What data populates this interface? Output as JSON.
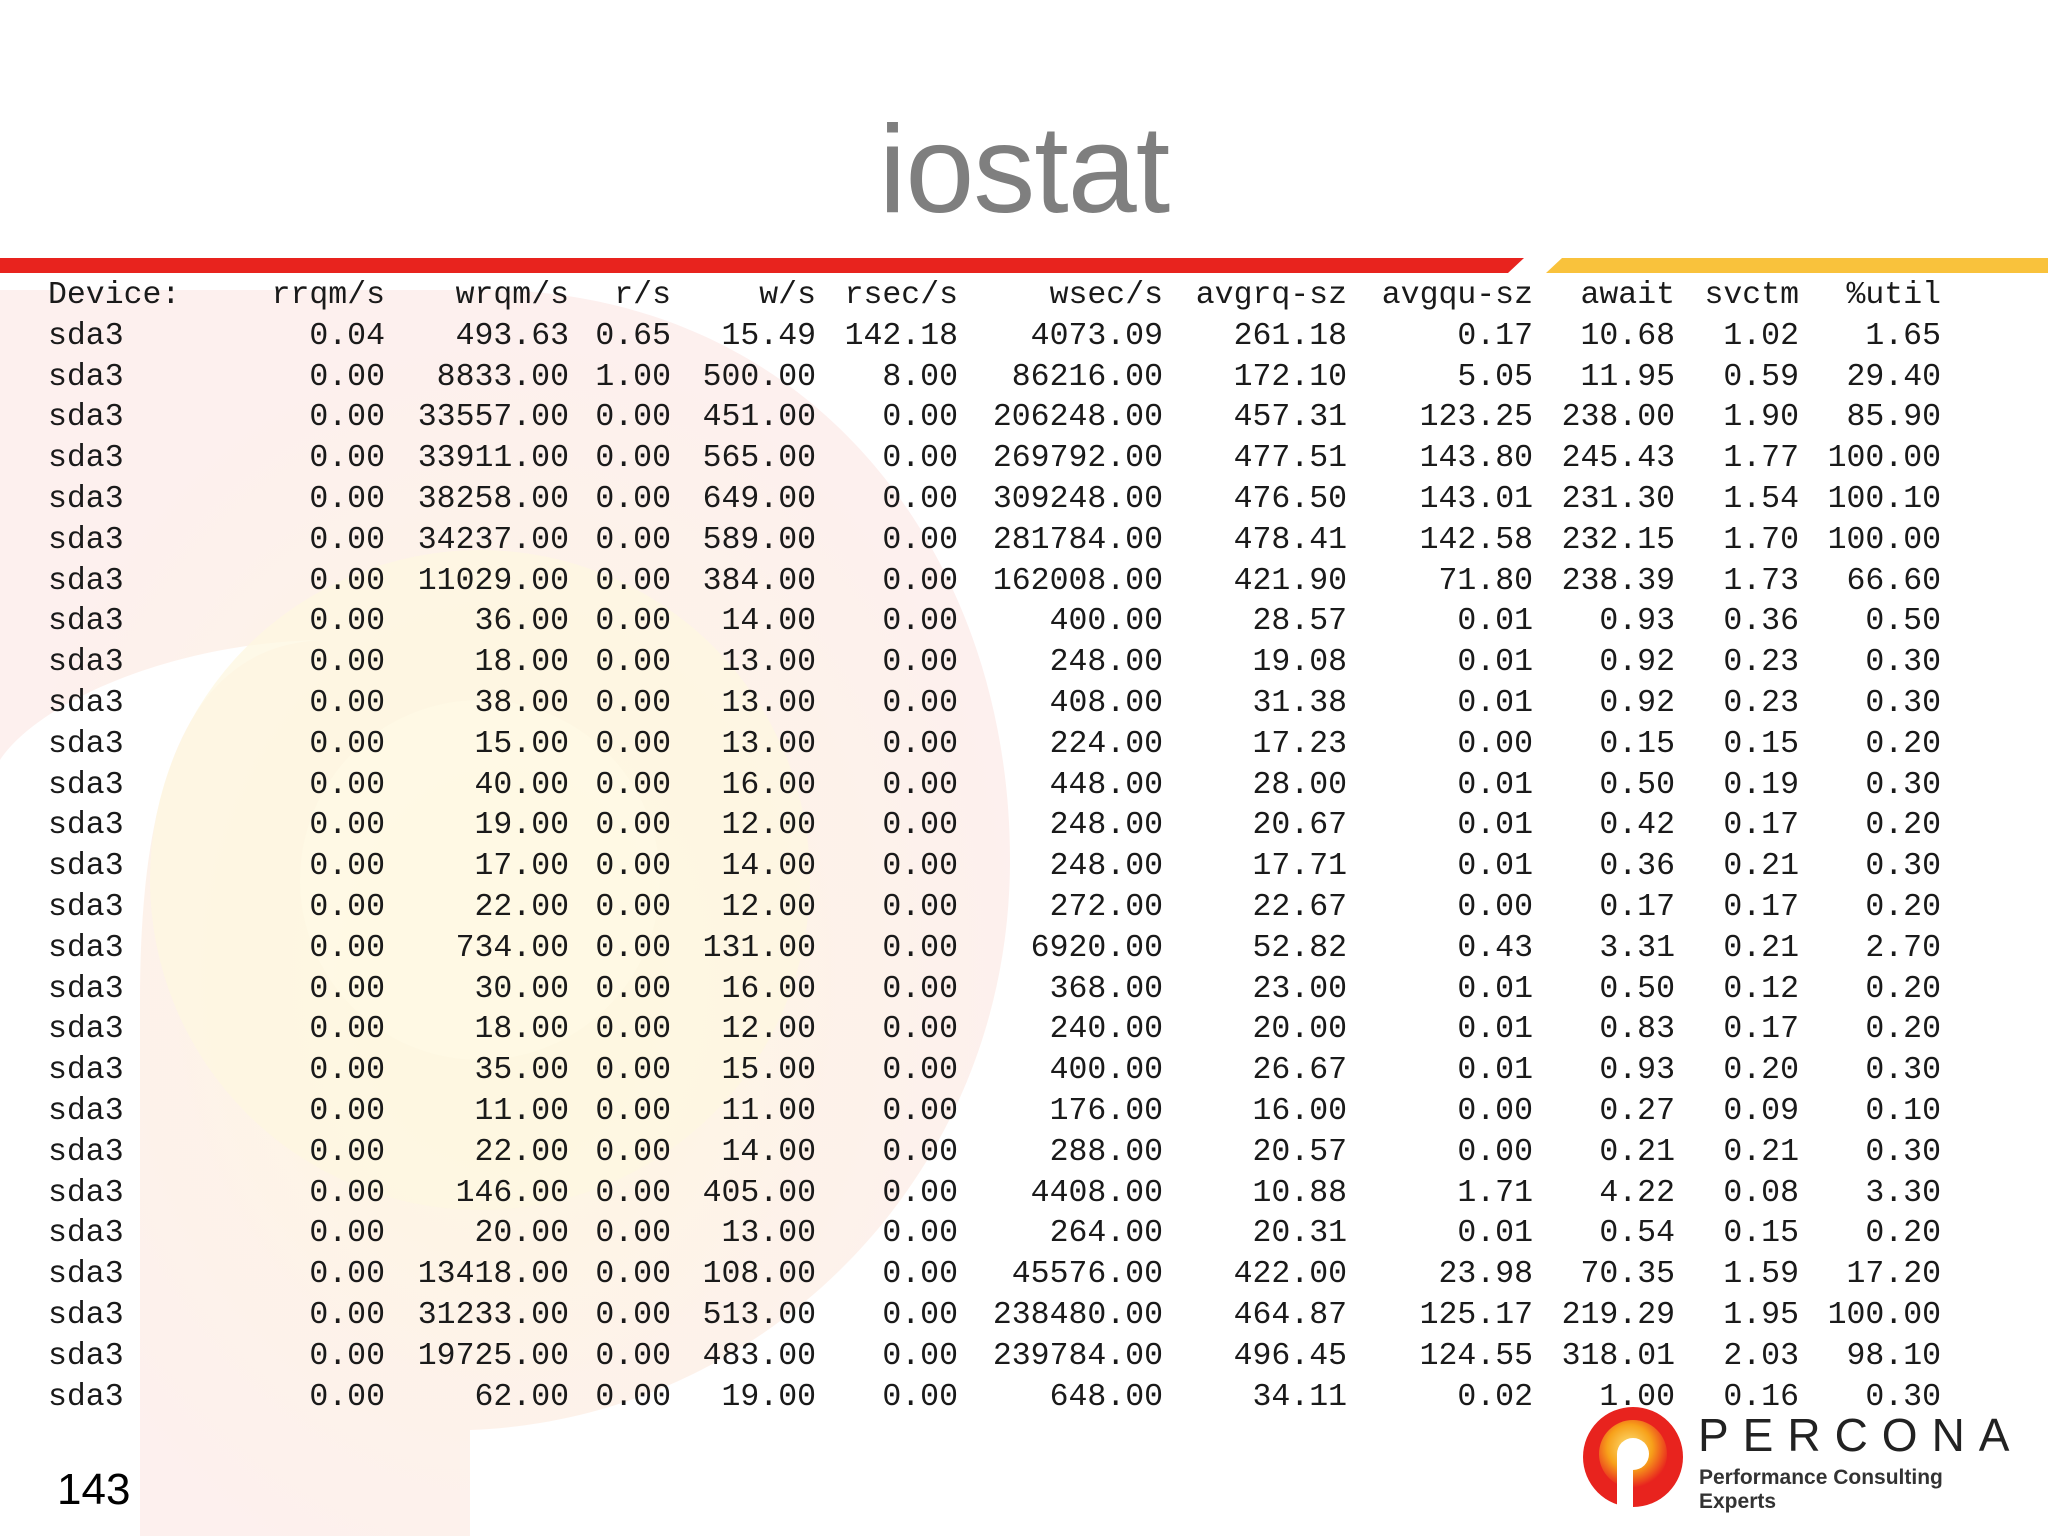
{
  "slide": {
    "title": "iostat",
    "page_number": "143"
  },
  "brand": {
    "name": "PERCONA",
    "tagline": "Performance Consulting Experts",
    "colors": {
      "red": "#e8231e",
      "orange": "#f7a11a",
      "yellow": "#fbd85c"
    }
  },
  "table": {
    "headers": [
      "Device:",
      "rrqm/s",
      "wrqm/s",
      "r/s",
      "w/s",
      "rsec/s",
      "wsec/s",
      "avgrq-sz",
      "avgqu-sz",
      "await",
      "svctm",
      "%util"
    ],
    "rows": [
      [
        "sda3",
        "0.04",
        "493.63",
        "0.65",
        "15.49",
        "142.18",
        "4073.09",
        "261.18",
        "0.17",
        "10.68",
        "1.02",
        "1.65"
      ],
      [
        "sda3",
        "0.00",
        "8833.00",
        "1.00",
        "500.00",
        "8.00",
        "86216.00",
        "172.10",
        "5.05",
        "11.95",
        "0.59",
        "29.40"
      ],
      [
        "sda3",
        "0.00",
        "33557.00",
        "0.00",
        "451.00",
        "0.00",
        "206248.00",
        "457.31",
        "123.25",
        "238.00",
        "1.90",
        "85.90"
      ],
      [
        "sda3",
        "0.00",
        "33911.00",
        "0.00",
        "565.00",
        "0.00",
        "269792.00",
        "477.51",
        "143.80",
        "245.43",
        "1.77",
        "100.00"
      ],
      [
        "sda3",
        "0.00",
        "38258.00",
        "0.00",
        "649.00",
        "0.00",
        "309248.00",
        "476.50",
        "143.01",
        "231.30",
        "1.54",
        "100.10"
      ],
      [
        "sda3",
        "0.00",
        "34237.00",
        "0.00",
        "589.00",
        "0.00",
        "281784.00",
        "478.41",
        "142.58",
        "232.15",
        "1.70",
        "100.00"
      ],
      [
        "sda3",
        "0.00",
        "11029.00",
        "0.00",
        "384.00",
        "0.00",
        "162008.00",
        "421.90",
        "71.80",
        "238.39",
        "1.73",
        "66.60"
      ],
      [
        "sda3",
        "0.00",
        "36.00",
        "0.00",
        "14.00",
        "0.00",
        "400.00",
        "28.57",
        "0.01",
        "0.93",
        "0.36",
        "0.50"
      ],
      [
        "sda3",
        "0.00",
        "18.00",
        "0.00",
        "13.00",
        "0.00",
        "248.00",
        "19.08",
        "0.01",
        "0.92",
        "0.23",
        "0.30"
      ],
      [
        "sda3",
        "0.00",
        "38.00",
        "0.00",
        "13.00",
        "0.00",
        "408.00",
        "31.38",
        "0.01",
        "0.92",
        "0.23",
        "0.30"
      ],
      [
        "sda3",
        "0.00",
        "15.00",
        "0.00",
        "13.00",
        "0.00",
        "224.00",
        "17.23",
        "0.00",
        "0.15",
        "0.15",
        "0.20"
      ],
      [
        "sda3",
        "0.00",
        "40.00",
        "0.00",
        "16.00",
        "0.00",
        "448.00",
        "28.00",
        "0.01",
        "0.50",
        "0.19",
        "0.30"
      ],
      [
        "sda3",
        "0.00",
        "19.00",
        "0.00",
        "12.00",
        "0.00",
        "248.00",
        "20.67",
        "0.01",
        "0.42",
        "0.17",
        "0.20"
      ],
      [
        "sda3",
        "0.00",
        "17.00",
        "0.00",
        "14.00",
        "0.00",
        "248.00",
        "17.71",
        "0.01",
        "0.36",
        "0.21",
        "0.30"
      ],
      [
        "sda3",
        "0.00",
        "22.00",
        "0.00",
        "12.00",
        "0.00",
        "272.00",
        "22.67",
        "0.00",
        "0.17",
        "0.17",
        "0.20"
      ],
      [
        "sda3",
        "0.00",
        "734.00",
        "0.00",
        "131.00",
        "0.00",
        "6920.00",
        "52.82",
        "0.43",
        "3.31",
        "0.21",
        "2.70"
      ],
      [
        "sda3",
        "0.00",
        "30.00",
        "0.00",
        "16.00",
        "0.00",
        "368.00",
        "23.00",
        "0.01",
        "0.50",
        "0.12",
        "0.20"
      ],
      [
        "sda3",
        "0.00",
        "18.00",
        "0.00",
        "12.00",
        "0.00",
        "240.00",
        "20.00",
        "0.01",
        "0.83",
        "0.17",
        "0.20"
      ],
      [
        "sda3",
        "0.00",
        "35.00",
        "0.00",
        "15.00",
        "0.00",
        "400.00",
        "26.67",
        "0.01",
        "0.93",
        "0.20",
        "0.30"
      ],
      [
        "sda3",
        "0.00",
        "11.00",
        "0.00",
        "11.00",
        "0.00",
        "176.00",
        "16.00",
        "0.00",
        "0.27",
        "0.09",
        "0.10"
      ],
      [
        "sda3",
        "0.00",
        "22.00",
        "0.00",
        "14.00",
        "0.00",
        "288.00",
        "20.57",
        "0.00",
        "0.21",
        "0.21",
        "0.30"
      ],
      [
        "sda3",
        "0.00",
        "146.00",
        "0.00",
        "405.00",
        "0.00",
        "4408.00",
        "10.88",
        "1.71",
        "4.22",
        "0.08",
        "3.30"
      ],
      [
        "sda3",
        "0.00",
        "20.00",
        "0.00",
        "13.00",
        "0.00",
        "264.00",
        "20.31",
        "0.01",
        "0.54",
        "0.15",
        "0.20"
      ],
      [
        "sda3",
        "0.00",
        "13418.00",
        "0.00",
        "108.00",
        "0.00",
        "45576.00",
        "422.00",
        "23.98",
        "70.35",
        "1.59",
        "17.20"
      ],
      [
        "sda3",
        "0.00",
        "31233.00",
        "0.00",
        "513.00",
        "0.00",
        "238480.00",
        "464.87",
        "125.17",
        "219.29",
        "1.95",
        "100.00"
      ],
      [
        "sda3",
        "0.00",
        "19725.00",
        "0.00",
        "483.00",
        "0.00",
        "239784.00",
        "496.45",
        "124.55",
        "318.01",
        "2.03",
        "98.10"
      ],
      [
        "sda3",
        "0.00",
        "62.00",
        "0.00",
        "19.00",
        "0.00",
        "648.00",
        "34.11",
        "0.02",
        "1.00",
        "0.16",
        "0.30"
      ]
    ]
  }
}
